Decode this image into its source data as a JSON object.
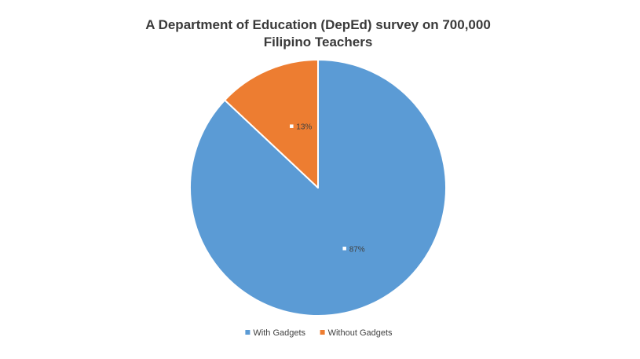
{
  "chart_data": {
    "type": "pie",
    "title_lines": [
      "A Department of Education (DepEd) survey on 700,000",
      "Filipino Teachers"
    ],
    "categories": [
      "With Gadgets",
      "Without Gadgets"
    ],
    "values": [
      87,
      13
    ],
    "value_labels": [
      "87%",
      "13%"
    ],
    "colors": [
      "#5B9BD5",
      "#ED7D31"
    ],
    "legend_position": "bottom",
    "grid": false
  }
}
